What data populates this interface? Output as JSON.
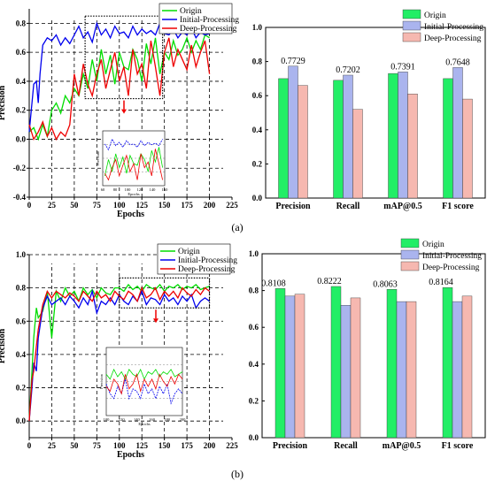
{
  "panels": [
    {
      "label": "(a)"
    },
    {
      "label": "(b)"
    }
  ],
  "colors": {
    "Origin": "#00dd00",
    "Initial-Processing": "#0000ee",
    "Deep-Processing": "#ee0000",
    "bar_Origin": "#22ee66",
    "bar_Initial-Processing": "#aab4ee",
    "bar_Deep-Processing": "#f6b8b0"
  },
  "chart_data": [
    {
      "id": "a-line",
      "type": "line",
      "xlabel": "Epochs",
      "ylabel": "Precision",
      "xlim": [
        0,
        225
      ],
      "ylim": [
        -0.4,
        0.9
      ],
      "xticks": [
        "0",
        "25",
        "50",
        "75",
        "100",
        "125",
        "150",
        "175",
        "200",
        "225"
      ],
      "yticks": [
        "-0.4",
        "-0.2",
        "0.0",
        "0.2",
        "0.4",
        "0.6",
        "0.8"
      ],
      "grid": "dashed",
      "legend": "top-right",
      "inset": {
        "xlabel": "Epochs",
        "ylabel": "Precision",
        "xticks": [
          "60",
          "80",
          "100",
          "120",
          "140",
          "160"
        ],
        "zoom_box": [
          62,
          148,
          0.28,
          0.85
        ]
      },
      "series": [
        {
          "name": "Origin",
          "x": [
            0,
            5,
            10,
            15,
            20,
            25,
            30,
            35,
            40,
            45,
            50,
            55,
            60,
            65,
            70,
            75,
            80,
            85,
            90,
            95,
            100,
            105,
            110,
            115,
            120,
            125,
            130,
            135,
            140,
            145,
            150,
            155,
            160,
            165,
            170,
            175,
            180,
            185,
            190,
            195,
            200
          ],
          "y": [
            0.05,
            0.08,
            0.0,
            0.1,
            0.02,
            0.2,
            0.25,
            0.18,
            0.3,
            0.25,
            0.35,
            0.3,
            0.45,
            0.35,
            0.55,
            0.4,
            0.62,
            0.45,
            0.58,
            0.38,
            0.6,
            0.5,
            0.48,
            0.62,
            0.55,
            0.4,
            0.66,
            0.52,
            0.7,
            0.45,
            0.6,
            0.55,
            0.68,
            0.58,
            0.62,
            0.7,
            0.6,
            0.68,
            0.62,
            0.72,
            0.7
          ]
        },
        {
          "name": "Initial-Processing",
          "x": [
            0,
            3,
            5,
            8,
            10,
            12,
            15,
            20,
            25,
            30,
            35,
            40,
            45,
            50,
            55,
            60,
            65,
            70,
            75,
            80,
            85,
            90,
            95,
            100,
            105,
            110,
            115,
            120,
            125,
            130,
            135,
            140,
            145,
            150,
            155,
            160,
            165,
            170,
            175,
            180,
            185,
            190,
            195,
            200
          ],
          "y": [
            0.05,
            0.25,
            0.38,
            0.4,
            0.25,
            0.45,
            0.65,
            0.7,
            0.68,
            0.72,
            0.65,
            0.7,
            0.66,
            0.72,
            0.78,
            0.7,
            0.74,
            0.67,
            0.8,
            0.72,
            0.76,
            0.7,
            0.78,
            0.73,
            0.74,
            0.7,
            0.78,
            0.72,
            0.76,
            0.73,
            0.75,
            0.72,
            0.8,
            0.73,
            0.72,
            0.76,
            0.7,
            0.74,
            0.72,
            0.77,
            0.7,
            0.74,
            0.72,
            0.73
          ]
        },
        {
          "name": "Deep-Processing",
          "x": [
            0,
            5,
            10,
            15,
            20,
            25,
            30,
            35,
            40,
            45,
            50,
            55,
            60,
            65,
            70,
            75,
            80,
            85,
            90,
            95,
            100,
            105,
            110,
            115,
            120,
            125,
            130,
            135,
            140,
            145,
            150,
            155,
            160,
            165,
            170,
            175,
            180,
            185,
            190,
            195,
            200
          ],
          "y": [
            0.1,
            0.0,
            0.05,
            0.12,
            0.02,
            0.08,
            0.0,
            0.05,
            0.02,
            0.1,
            0.45,
            0.3,
            0.52,
            0.38,
            0.3,
            0.45,
            0.55,
            0.35,
            0.48,
            0.6,
            0.4,
            0.5,
            0.3,
            0.62,
            0.45,
            0.52,
            0.35,
            0.68,
            0.5,
            0.3,
            0.6,
            0.7,
            0.5,
            0.62,
            0.55,
            0.48,
            0.65,
            0.5,
            0.6,
            0.68,
            0.45
          ]
        }
      ]
    },
    {
      "id": "a-bar",
      "type": "bar",
      "categories": [
        "Precision",
        "Recall",
        "mAP@0.5",
        "F1 score"
      ],
      "ylim": [
        0.0,
        1.0
      ],
      "yticks": [
        "0.0",
        "0.2",
        "0.4",
        "0.6",
        "0.8",
        "1.0"
      ],
      "legend": "top-right",
      "series": [
        {
          "name": "Origin",
          "values": [
            0.7,
            0.69,
            0.73,
            0.7
          ]
        },
        {
          "name": "Initial-Processing",
          "values": [
            0.7729,
            0.7202,
            0.7391,
            0.7648
          ]
        },
        {
          "name": "Deep-Processing",
          "values": [
            0.66,
            0.52,
            0.61,
            0.58
          ]
        }
      ],
      "data_labels": [
        "0.7729",
        "0.7202",
        "0.7391",
        "0.7648"
      ],
      "labeled_series": "Initial-Processing"
    },
    {
      "id": "b-line",
      "type": "line",
      "xlabel": "Epochs",
      "ylabel": "Precision",
      "xlim": [
        0,
        225
      ],
      "ylim": [
        -0.1,
        1.0
      ],
      "xticks": [
        "0",
        "25",
        "50",
        "75",
        "100",
        "125",
        "150",
        "175",
        "200",
        "225"
      ],
      "yticks": [
        "0.0",
        "0.2",
        "0.4",
        "0.6",
        "0.8",
        "1.0"
      ],
      "grid": "dashed",
      "legend": "top-right",
      "inset": {
        "xlabel": "Epochs",
        "ylabel": "Precision",
        "xticks": [
          "100",
          "120",
          "140",
          "160",
          "180",
          "200"
        ],
        "zoom_box": [
          100,
          200,
          0.68,
          0.86
        ]
      },
      "series": [
        {
          "name": "Origin",
          "x": [
            0,
            3,
            5,
            8,
            10,
            15,
            20,
            25,
            30,
            35,
            40,
            45,
            50,
            55,
            60,
            65,
            70,
            75,
            80,
            85,
            90,
            95,
            100,
            105,
            110,
            115,
            120,
            125,
            130,
            135,
            140,
            145,
            150,
            155,
            160,
            165,
            170,
            175,
            180,
            185,
            190,
            195,
            200
          ],
          "y": [
            0.0,
            0.3,
            0.5,
            0.68,
            0.62,
            0.66,
            0.78,
            0.5,
            0.78,
            0.72,
            0.8,
            0.75,
            0.78,
            0.72,
            0.8,
            0.76,
            0.79,
            0.74,
            0.8,
            0.77,
            0.76,
            0.8,
            0.8,
            0.78,
            0.82,
            0.79,
            0.81,
            0.78,
            0.82,
            0.8,
            0.79,
            0.82,
            0.78,
            0.81,
            0.8,
            0.82,
            0.79,
            0.81,
            0.8,
            0.82,
            0.79,
            0.8,
            0.81
          ]
        },
        {
          "name": "Initial-Processing",
          "x": [
            0,
            3,
            5,
            8,
            10,
            15,
            20,
            25,
            30,
            35,
            40,
            45,
            50,
            55,
            60,
            65,
            70,
            75,
            80,
            85,
            90,
            95,
            100,
            105,
            110,
            115,
            120,
            125,
            130,
            135,
            140,
            145,
            150,
            155,
            160,
            165,
            170,
            175,
            180,
            185,
            190,
            195,
            200
          ],
          "y": [
            0.0,
            0.2,
            0.35,
            0.3,
            0.5,
            0.68,
            0.75,
            0.7,
            0.72,
            0.74,
            0.7,
            0.75,
            0.72,
            0.68,
            0.74,
            0.7,
            0.78,
            0.65,
            0.72,
            0.7,
            0.74,
            0.7,
            0.76,
            0.72,
            0.7,
            0.75,
            0.72,
            0.78,
            0.7,
            0.74,
            0.73,
            0.7,
            0.76,
            0.72,
            0.74,
            0.7,
            0.75,
            0.72,
            0.76,
            0.68,
            0.72,
            0.74,
            0.72
          ]
        },
        {
          "name": "Deep-Processing",
          "x": [
            0,
            3,
            5,
            8,
            10,
            15,
            20,
            25,
            30,
            35,
            40,
            45,
            50,
            55,
            60,
            65,
            70,
            75,
            80,
            85,
            90,
            95,
            100,
            105,
            110,
            115,
            120,
            125,
            130,
            135,
            140,
            145,
            150,
            155,
            160,
            165,
            170,
            175,
            180,
            185,
            190,
            195,
            200
          ],
          "y": [
            0.0,
            0.25,
            0.3,
            0.45,
            0.55,
            0.7,
            0.78,
            0.74,
            0.78,
            0.76,
            0.74,
            0.77,
            0.75,
            0.72,
            0.78,
            0.75,
            0.72,
            0.78,
            0.74,
            0.76,
            0.72,
            0.78,
            0.75,
            0.73,
            0.78,
            0.76,
            0.72,
            0.8,
            0.74,
            0.76,
            0.8,
            0.73,
            0.78,
            0.75,
            0.78,
            0.74,
            0.8,
            0.77,
            0.75,
            0.79,
            0.76,
            0.8,
            0.78
          ]
        }
      ]
    },
    {
      "id": "b-bar",
      "type": "bar",
      "categories": [
        "Precision",
        "Recall",
        "mAP@0.5",
        "F1 score"
      ],
      "ylim": [
        0.0,
        1.0
      ],
      "yticks": [
        "0.0",
        "0.2",
        "0.4",
        "0.6",
        "0.8",
        "1.0"
      ],
      "legend": "top-right",
      "series": [
        {
          "name": "Origin",
          "values": [
            0.8108,
            0.8222,
            0.8063,
            0.8164
          ]
        },
        {
          "name": "Initial-Processing",
          "values": [
            0.77,
            0.72,
            0.74,
            0.74
          ]
        },
        {
          "name": "Deep-Processing",
          "values": [
            0.78,
            0.76,
            0.74,
            0.77
          ]
        }
      ],
      "data_labels": [
        "0.8108",
        "0.8222",
        "0.8063",
        "0.8164"
      ],
      "labeled_series": "Origin"
    }
  ]
}
